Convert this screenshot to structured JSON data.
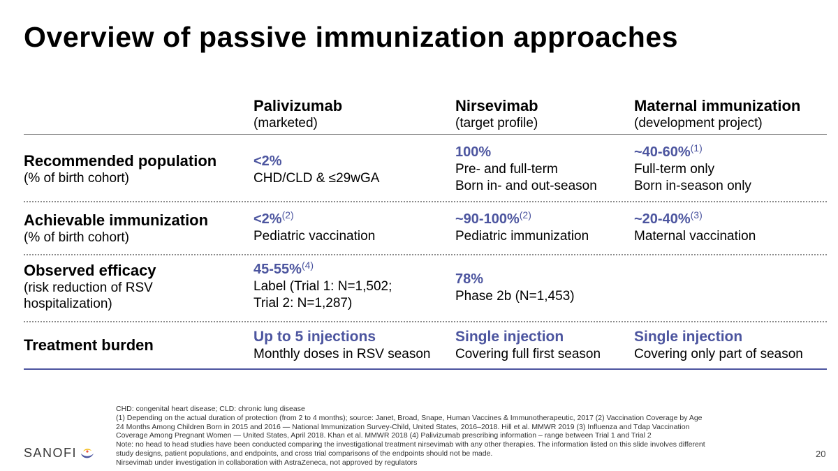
{
  "title": "Overview of passive immunization approaches",
  "columns": [
    {
      "name": "Palivizumab",
      "sub": "(marketed)"
    },
    {
      "name": "Nirsevimab",
      "sub": "(target profile)"
    },
    {
      "name": "Maternal immunization",
      "sub": "(development project)"
    }
  ],
  "rows": [
    {
      "label": "Recommended population",
      "sub": "(% of birth cohort)",
      "cells": [
        {
          "value": "<2%",
          "note": "",
          "lines": [
            "CHD/CLD & ≤29wGA"
          ]
        },
        {
          "value": "100%",
          "note": "",
          "lines": [
            "Pre- and full-term",
            "Born in- and out-season"
          ]
        },
        {
          "value": "~40-60%",
          "note": "(1)",
          "lines": [
            "Full-term only",
            "Born in-season only"
          ]
        }
      ]
    },
    {
      "label": "Achievable immunization",
      "sub": "(% of birth cohort)",
      "cells": [
        {
          "value": "<2%",
          "note": "(2)",
          "lines": [
            "Pediatric vaccination"
          ]
        },
        {
          "value": "~90-100%",
          "note": "(2)",
          "lines": [
            "Pediatric immunization"
          ]
        },
        {
          "value": "~20-40%",
          "note": "(3)",
          "lines": [
            "Maternal vaccination"
          ]
        }
      ]
    },
    {
      "label": "Observed efficacy",
      "sub_lines": [
        "(risk reduction of RSV",
        "hospitalization)"
      ],
      "cells": [
        {
          "value": "45-55%",
          "note": "(4)",
          "lines": [
            "Label (Trial 1: N=1,502;",
            "Trial 2: N=1,287)"
          ]
        },
        {
          "value": "78%",
          "note": "",
          "lines": [
            "Phase 2b (N=1,453)"
          ]
        }
      ]
    },
    {
      "label": "Treatment burden",
      "cells": [
        {
          "value": "Up to 5 injections",
          "note": "",
          "lines": [
            "Monthly doses in RSV season"
          ]
        },
        {
          "value": "Single injection",
          "note": "",
          "lines": [
            "Covering full first season"
          ]
        },
        {
          "value": "Single injection",
          "note": "",
          "lines": [
            "Covering only part of season"
          ]
        }
      ]
    }
  ],
  "footnotes": [
    "CHD: congenital heart disease; CLD: chronic lung disease",
    "(1) Depending on the actual duration of protection (from 2 to 4 months); source: Janet, Broad, Snape, Human Vaccines & Immunotherapeutic, 2017  (2) Vaccination Coverage by Age",
    "24 Months Among Children Born in 2015 and 2016 — National Immunization Survey-Child, United States, 2016–2018. Hill et al. MMWR 2019  (3) Influenza and Tdap Vaccination",
    "Coverage Among Pregnant Women — United States, April 2018. Khan et al. MMWR 2018  (4) Palivizumab prescribing information – range between Trial 1 and Trial 2",
    "Note: no head to head studies have been conducted comparing the investigational treatment nirsevimab with any other therapies. The information listed on this slide involves different",
    "study designs, patient populations, and endpoints, and cross trial comparisons of the endpoints should not be made.",
    "Nirsevimab under investigation in collaboration with AstraZeneca, not approved by regulators"
  ],
  "logo_text": "SANOFI",
  "page_number": "20",
  "colors": {
    "accent": "#4c559f",
    "text": "#000000",
    "rule": "#7a7a7a"
  }
}
